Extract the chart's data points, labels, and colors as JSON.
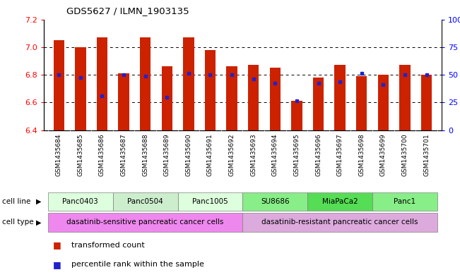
{
  "title": "GDS5627 / ILMN_1903135",
  "samples": [
    "GSM1435684",
    "GSM1435685",
    "GSM1435686",
    "GSM1435687",
    "GSM1435688",
    "GSM1435689",
    "GSM1435690",
    "GSM1435691",
    "GSM1435692",
    "GSM1435693",
    "GSM1435694",
    "GSM1435695",
    "GSM1435696",
    "GSM1435697",
    "GSM1435698",
    "GSM1435699",
    "GSM1435700",
    "GSM1435701"
  ],
  "transformed_counts": [
    7.05,
    7.0,
    7.07,
    6.81,
    7.07,
    6.86,
    7.07,
    6.98,
    6.86,
    6.87,
    6.85,
    6.61,
    6.78,
    6.87,
    6.79,
    6.8,
    6.87,
    6.8
  ],
  "percentile_ranks": [
    6.8,
    6.78,
    6.65,
    6.8,
    6.79,
    6.64,
    6.81,
    6.8,
    6.8,
    6.77,
    6.74,
    6.61,
    6.74,
    6.75,
    6.81,
    6.73,
    6.8,
    6.8
  ],
  "ylim_left": [
    6.4,
    7.2
  ],
  "yticks_left": [
    6.4,
    6.6,
    6.8,
    7.0,
    7.2
  ],
  "yticks_right_vals": [
    0,
    25,
    50,
    75,
    100
  ],
  "yticks_right_labels": [
    "0",
    "25",
    "50",
    "75",
    "100%"
  ],
  "bar_color": "#cc2200",
  "dot_color": "#2222cc",
  "cell_lines": [
    {
      "name": "Panc0403",
      "start": 0,
      "end": 3,
      "color": "#ddffdd"
    },
    {
      "name": "Panc0504",
      "start": 3,
      "end": 6,
      "color": "#cceecc"
    },
    {
      "name": "Panc1005",
      "start": 6,
      "end": 9,
      "color": "#ddffdd"
    },
    {
      "name": "SU8686",
      "start": 9,
      "end": 12,
      "color": "#88ee88"
    },
    {
      "name": "MiaPaCa2",
      "start": 12,
      "end": 15,
      "color": "#55dd55"
    },
    {
      "name": "Panc1",
      "start": 15,
      "end": 18,
      "color": "#88ee88"
    }
  ],
  "cell_types": [
    {
      "name": "dasatinib-sensitive pancreatic cancer cells",
      "start": 0,
      "end": 9,
      "color": "#ee88ee"
    },
    {
      "name": "dasatinib-resistant pancreatic cancer cells",
      "start": 9,
      "end": 18,
      "color": "#ddaadd"
    }
  ],
  "legend_items": [
    {
      "label": "transformed count",
      "color": "#cc2200"
    },
    {
      "label": "percentile rank within the sample",
      "color": "#2222cc"
    }
  ],
  "bar_width": 0.5,
  "tick_label_gray": "#d0d0d0"
}
